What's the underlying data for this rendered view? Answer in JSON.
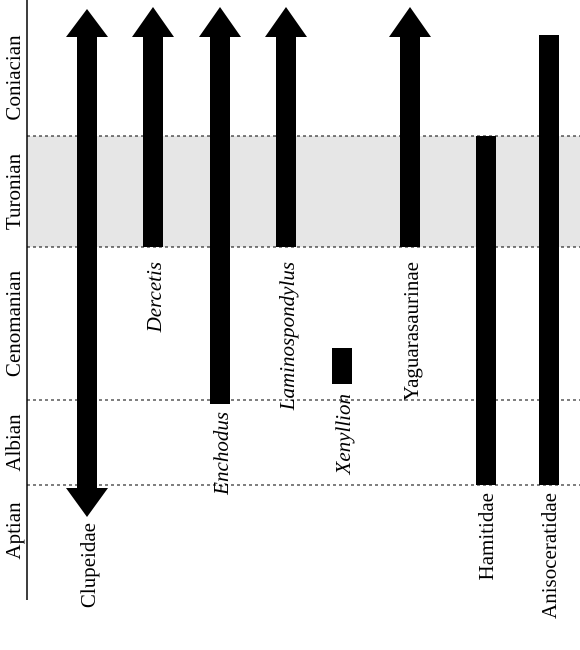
{
  "chart_data": {
    "type": "range-chart",
    "stages": [
      "Aptian",
      "Albian",
      "Cenomanian",
      "Turonian",
      "Coniacian"
    ],
    "highlighted_stage": "Turonian",
    "taxa": [
      {
        "name": "Clupeidae",
        "italic": false,
        "start": "Aptian",
        "end": "Coniacian",
        "extends_below": true,
        "extends_above": true
      },
      {
        "name": "Dercetis",
        "italic": true,
        "start": "Turonian",
        "end": "Coniacian",
        "extends_below": false,
        "extends_above": true
      },
      {
        "name": "Enchodus",
        "italic": true,
        "start": "Cenomanian",
        "end": "Coniacian",
        "extends_below": false,
        "extends_above": true
      },
      {
        "name": "Laminospondylus",
        "italic": true,
        "start": "Turonian",
        "end": "Coniacian",
        "extends_below": false,
        "extends_above": true
      },
      {
        "name": "Xenyllion",
        "italic": true,
        "start": "Cenomanian",
        "end": "Cenomanian",
        "extends_below": false,
        "extends_above": false
      },
      {
        "name": "Yaguarasaurinae",
        "italic": false,
        "start": "Turonian",
        "end": "Coniacian",
        "extends_below": false,
        "extends_above": true
      },
      {
        "name": "Hamitidae",
        "italic": false,
        "start": "Albian",
        "end": "Turonian",
        "extends_below": false,
        "extends_above": false
      },
      {
        "name": "Anisoceratidae",
        "italic": false,
        "start": "Albian",
        "end": "Coniacian",
        "extends_below": false,
        "extends_above": false
      }
    ]
  }
}
